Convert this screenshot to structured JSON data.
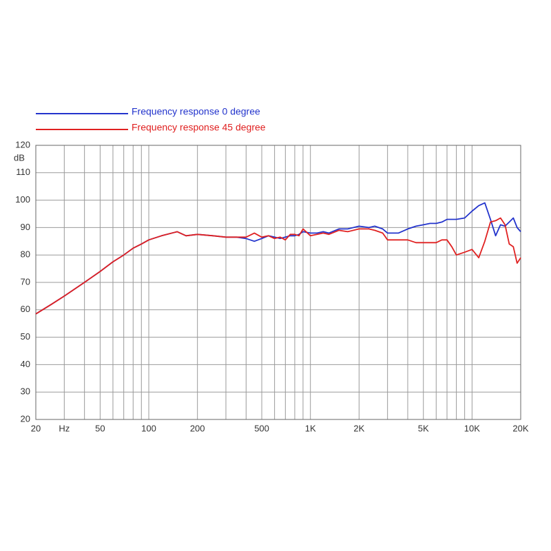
{
  "chart_data": {
    "type": "line",
    "xscale": "log",
    "grid": true,
    "ylabel": "dB",
    "x": [
      20,
      25,
      30,
      40,
      50,
      60,
      70,
      80,
      90,
      100,
      120,
      150,
      170,
      200,
      250,
      300,
      350,
      400,
      450,
      500,
      550,
      600,
      650,
      700,
      750,
      800,
      850,
      900,
      1000,
      1100,
      1200,
      1300,
      1500,
      1700,
      2000,
      2300,
      2500,
      2800,
      3000,
      3500,
      4000,
      4500,
      5000,
      5500,
      6000,
      6500,
      7000,
      7500,
      8000,
      9000,
      10000,
      11000,
      12000,
      13000,
      14000,
      15000,
      16000,
      17000,
      18000,
      19000,
      20000
    ],
    "series": [
      {
        "name": "Frequency response 0 degree",
        "color": "#2233cc",
        "values": [
          58.5,
          62,
          65,
          70,
          74,
          77.5,
          80,
          82.5,
          84,
          85.5,
          87,
          88.5,
          87,
          87.5,
          87,
          86.5,
          86.5,
          86,
          85,
          86,
          87,
          86.5,
          86,
          86.5,
          87,
          87,
          87.5,
          88.5,
          88,
          88,
          88.5,
          88,
          89.5,
          89.5,
          90.5,
          90,
          90.5,
          89.5,
          88,
          88,
          89.5,
          90.5,
          91,
          91.5,
          91.5,
          92,
          93,
          93,
          93,
          93.5,
          96,
          98,
          99,
          93,
          87,
          91,
          90.5,
          92,
          93.5,
          90,
          88.5
        ]
      },
      {
        "name": "Frequency response 45 degree",
        "color": "#e02020",
        "values": [
          58.5,
          62,
          65,
          70,
          74,
          77.5,
          80,
          82.5,
          84,
          85.5,
          87,
          88.5,
          87,
          87.5,
          87,
          86.5,
          86.5,
          86.5,
          88,
          86.5,
          87,
          86,
          86.5,
          85.5,
          87.5,
          87.5,
          87,
          89.5,
          87,
          87.5,
          88,
          87.5,
          89,
          88.5,
          89.5,
          89.5,
          89,
          88,
          85.5,
          85.5,
          85.5,
          84.5,
          84.5,
          84.5,
          84.5,
          85.5,
          85.5,
          83,
          80,
          81,
          82,
          79,
          85,
          92,
          92.5,
          93.5,
          91,
          84,
          83,
          77,
          79
        ]
      }
    ],
    "xlim": [
      20,
      20000
    ],
    "xticks": [
      20,
      {
        "value": 30,
        "label": "Hz"
      },
      50,
      100,
      200,
      500,
      {
        "value": 1000,
        "label": "1K"
      },
      {
        "value": 2000,
        "label": "2K"
      },
      {
        "value": 5000,
        "label": "5K"
      },
      {
        "value": 10000,
        "label": "10K"
      },
      {
        "value": 20000,
        "label": "20K"
      }
    ],
    "xgrid": [
      30,
      40,
      50,
      60,
      70,
      80,
      90,
      100,
      200,
      300,
      400,
      500,
      600,
      700,
      800,
      900,
      1000,
      2000,
      3000,
      4000,
      5000,
      6000,
      7000,
      8000,
      9000,
      10000
    ],
    "ylim": [
      20,
      120
    ],
    "yticks": [
      20,
      30,
      40,
      50,
      60,
      70,
      80,
      90,
      100,
      110,
      120
    ]
  }
}
